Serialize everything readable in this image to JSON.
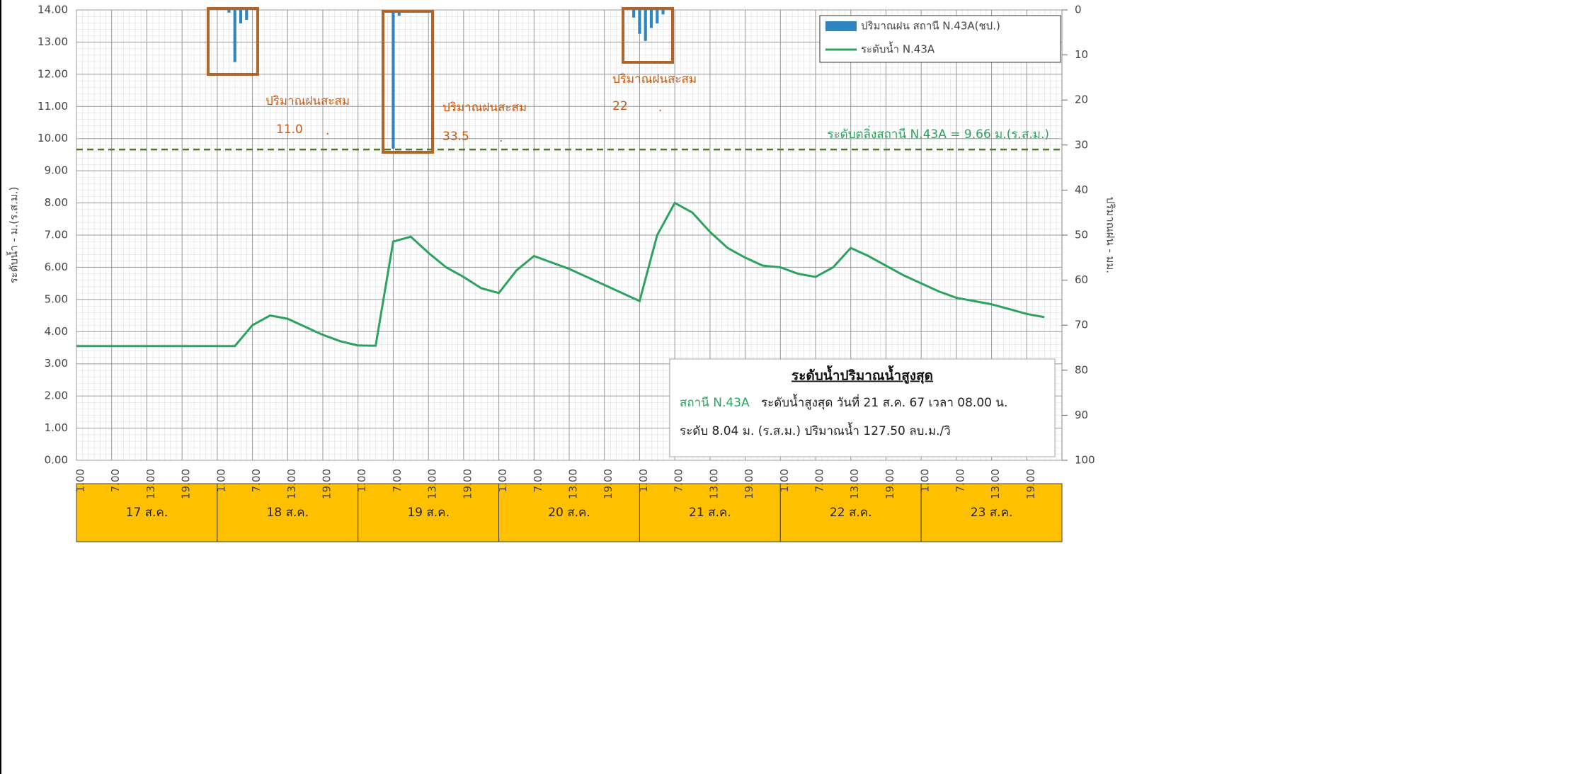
{
  "chart_data": {
    "type": "line",
    "y_label": "ระดับน้ำ - ม.(ร.ส.ม.)",
    "y2_label": "ปริมาณฝน - มม.",
    "xlim": [
      0,
      168
    ],
    "xticks": [
      {
        "value": 0,
        "label": "1.00"
      },
      {
        "value": 6,
        "label": "7.00"
      },
      {
        "value": 12,
        "label": "13.00"
      },
      {
        "value": 18,
        "label": "19.00"
      },
      {
        "value": 24,
        "label": "1.00"
      },
      {
        "value": 30,
        "label": "7.00"
      },
      {
        "value": 36,
        "label": "13.00"
      },
      {
        "value": 42,
        "label": "19.00"
      },
      {
        "value": 48,
        "label": "1.00"
      },
      {
        "value": 54,
        "label": "7.00"
      },
      {
        "value": 60,
        "label": "13.00"
      },
      {
        "value": 66,
        "label": "19.00"
      },
      {
        "value": 72,
        "label": "1.00"
      },
      {
        "value": 78,
        "label": "7.00"
      },
      {
        "value": 84,
        "label": "13.00"
      },
      {
        "value": 90,
        "label": "19.00"
      },
      {
        "value": 96,
        "label": "1.00"
      },
      {
        "value": 102,
        "label": "7.00"
      },
      {
        "value": 108,
        "label": "13.00"
      },
      {
        "value": 114,
        "label": "19.00"
      },
      {
        "value": 120,
        "label": "1.00"
      },
      {
        "value": 126,
        "label": "7.00"
      },
      {
        "value": 132,
        "label": "13.00"
      },
      {
        "value": 138,
        "label": "19.00"
      },
      {
        "value": 144,
        "label": "1.00"
      },
      {
        "value": 150,
        "label": "7.00"
      },
      {
        "value": 156,
        "label": "13.00"
      },
      {
        "value": 162,
        "label": "19.00"
      }
    ],
    "days": [
      "17 ส.ค.",
      "18 ส.ค.",
      "19 ส.ค.",
      "20 ส.ค.",
      "21 ส.ค.",
      "22 ส.ค.",
      "23 ส.ค."
    ],
    "ylim": [
      0,
      14
    ],
    "yticks": [
      {
        "value": 0,
        "label": "0.00"
      },
      {
        "value": 1,
        "label": "1.00"
      },
      {
        "value": 2,
        "label": "2.00"
      },
      {
        "value": 3,
        "label": "3.00"
      },
      {
        "value": 4,
        "label": "4.00"
      },
      {
        "value": 5,
        "label": "5.00"
      },
      {
        "value": 6,
        "label": "6.00"
      },
      {
        "value": 7,
        "label": "7.00"
      },
      {
        "value": 8,
        "label": "8.00"
      },
      {
        "value": 9,
        "label": "9.00"
      },
      {
        "value": 10,
        "label": "10.00"
      },
      {
        "value": 11,
        "label": "11.00"
      },
      {
        "value": 12,
        "label": "12.00"
      },
      {
        "value": 13,
        "label": "13.00"
      },
      {
        "value": 14,
        "label": "14.00"
      }
    ],
    "y2lim": [
      100,
      0
    ],
    "y2ticks": [
      0,
      10,
      20,
      30,
      40,
      50,
      60,
      70,
      80,
      90,
      100
    ],
    "grid": true,
    "series": [
      {
        "name": "ปริมาณฝน สถานี N.43A(ชป.)",
        "type": "bar",
        "axis": "y2",
        "color": "#2e86c1",
        "x": [
          26,
          27,
          28,
          29,
          54,
          55,
          95,
          96,
          97,
          98,
          99,
          100
        ],
        "values": [
          0.6,
          11.6,
          3,
          2.2,
          30.8,
          1.3,
          1.7,
          5.3,
          6.9,
          4,
          3,
          1
        ]
      },
      {
        "name": "ระดับน้ำ N.43A",
        "type": "line",
        "color": "#2ca25f",
        "x": [
          0,
          3,
          6,
          9,
          12,
          15,
          18,
          21,
          24,
          27,
          30,
          33,
          36,
          39,
          42,
          45,
          48,
          51,
          54,
          57,
          60,
          63,
          66,
          69,
          72,
          75,
          78,
          81,
          84,
          87,
          90,
          93,
          96,
          99,
          102,
          105,
          108,
          111,
          114,
          117,
          120,
          123,
          126,
          129,
          132,
          135,
          138,
          141,
          144,
          147,
          150,
          153,
          156,
          159,
          162,
          165
        ],
        "values": [
          3.55,
          3.55,
          3.55,
          3.55,
          3.55,
          3.55,
          3.55,
          3.55,
          3.55,
          3.55,
          4.2,
          4.5,
          4.4,
          4.15,
          3.9,
          3.7,
          3.57,
          3.56,
          6.8,
          6.95,
          6.45,
          6.0,
          5.7,
          5.35,
          5.2,
          5.9,
          6.35,
          6.15,
          5.95,
          5.7,
          5.45,
          5.2,
          4.95,
          7.0,
          8.0,
          7.7,
          7.1,
          6.6,
          6.3,
          6.05,
          6.0,
          5.8,
          5.7,
          6.0,
          6.6,
          6.35,
          6.05,
          5.75,
          5.5,
          5.25,
          5.05,
          4.95,
          4.85,
          4.7,
          4.55,
          4.45
        ]
      }
    ],
    "threshold": {
      "value": 9.66,
      "label": "ระดับตลิ่งสถานี N.43A = 9.66 ม.(ร.ส.ม.)",
      "color": "#4d7a1f"
    },
    "annotations": [
      "ปริมาณฝนสะสม",
      "11.0",
      ".",
      "ปริมาณฝนสะสม",
      "33.5",
      ".",
      "ปริมาณฝนสะสม",
      "22",
      "."
    ],
    "info": {
      "title": "ระดับน้ำปริมาณน้ำสูงสุด",
      "station": "สถานี N.43A",
      "line1": "ระดับน้ำสูงสุด วันที่ 21 ส.ค. 67 เวลา 08.00 น.",
      "line2": "ระดับ 8.04 ม. (ร.ส.ม.) ปริมาณน้ำ 127.50 ลบ.ม./วิ"
    }
  }
}
